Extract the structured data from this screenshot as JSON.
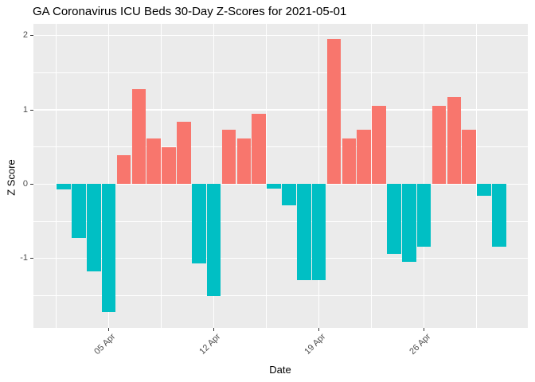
{
  "chart_data": {
    "type": "bar",
    "title": "GA Coronavirus ICU Beds 30-Day Z-Scores for 2021-05-01",
    "xlabel": "Date",
    "ylabel": "Z Score",
    "orientation": "vertical",
    "legend_position": "none",
    "grid": "major+minor",
    "x": [
      "2021-04-02",
      "2021-04-03",
      "2021-04-04",
      "2021-04-05",
      "2021-04-06",
      "2021-04-07",
      "2021-04-08",
      "2021-04-09",
      "2021-04-10",
      "2021-04-11",
      "2021-04-12",
      "2021-04-13",
      "2021-04-14",
      "2021-04-15",
      "2021-04-16",
      "2021-04-17",
      "2021-04-18",
      "2021-04-19",
      "2021-04-20",
      "2021-04-21",
      "2021-04-22",
      "2021-04-23",
      "2021-04-24",
      "2021-04-25",
      "2021-04-26",
      "2021-04-27",
      "2021-04-28",
      "2021-04-29",
      "2021-04-30",
      "2021-05-01"
    ],
    "values": [
      -0.07,
      -0.73,
      -1.18,
      -1.72,
      0.39,
      1.28,
      0.62,
      0.5,
      0.84,
      -1.07,
      -1.51,
      0.73,
      0.62,
      0.95,
      -0.06,
      -0.29,
      -1.29,
      -1.29,
      1.96,
      0.62,
      0.73,
      1.06,
      -0.94,
      -1.05,
      -0.84,
      1.06,
      1.17,
      0.73,
      -0.16,
      -0.84
    ],
    "x_ticks": [
      {
        "date": "2021-04-05",
        "label": "05 Apr"
      },
      {
        "date": "2021-04-12",
        "label": "12 Apr"
      },
      {
        "date": "2021-04-19",
        "label": "19 Apr"
      },
      {
        "date": "2021-04-26",
        "label": "26 Apr"
      }
    ],
    "y_ticks": [
      {
        "value": -1,
        "label": "-1"
      },
      {
        "value": 0,
        "label": "0"
      },
      {
        "value": 1,
        "label": "1"
      },
      {
        "value": 2,
        "label": "2"
      }
    ],
    "y_minor_ticks": [
      -1.5,
      -0.5,
      0.5,
      1.5
    ],
    "ylim": [
      -1.94,
      2.16
    ],
    "colors": {
      "positive": "#F8766D",
      "negative": "#00BFC4",
      "panel_background": "#EBEBEB",
      "gridline": "#FFFFFF",
      "axis_text": "#4D4D4D",
      "tick_mark": "#333333",
      "title_text": "#000000"
    }
  }
}
